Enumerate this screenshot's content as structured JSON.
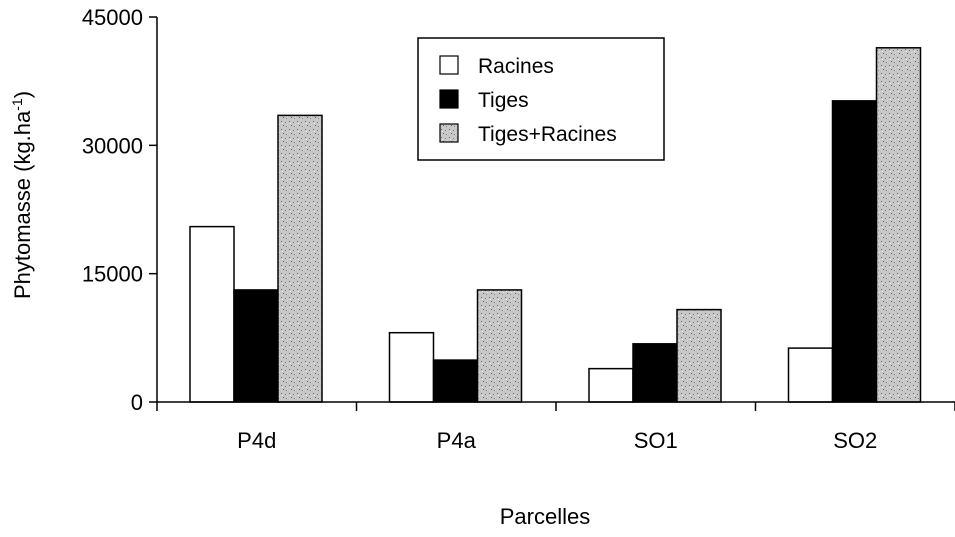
{
  "chart_data": {
    "type": "bar",
    "title": "",
    "xlabel": "Parcelles",
    "ylabel": "Phytomasse (kg.ha",
    "ylabel_superscript": "-1",
    "ylabel_close": ")",
    "categories": [
      "P4d",
      "P4a",
      "SO1",
      "SO2"
    ],
    "ylim": [
      0,
      45000
    ],
    "yticks": [
      0,
      15000,
      30000,
      45000
    ],
    "ytick_labels": [
      "0",
      "15000",
      "30000",
      "45000"
    ],
    "legend_position": "top-right",
    "grid": false,
    "series": [
      {
        "name": "Racines",
        "values": [
          20500,
          8100,
          3900,
          6300
        ],
        "fill": "white"
      },
      {
        "name": "Tiges",
        "values": [
          13100,
          4900,
          6800,
          35200
        ],
        "fill": "black"
      },
      {
        "name": "Tiges+Racines",
        "values": [
          33500,
          13100,
          10800,
          41400
        ],
        "fill": "speckled"
      }
    ],
    "colors": {
      "axis": "#000000",
      "bar_white": "#ffffff",
      "bar_black": "#000000",
      "bar_speckled": "#b5b5b5"
    }
  }
}
